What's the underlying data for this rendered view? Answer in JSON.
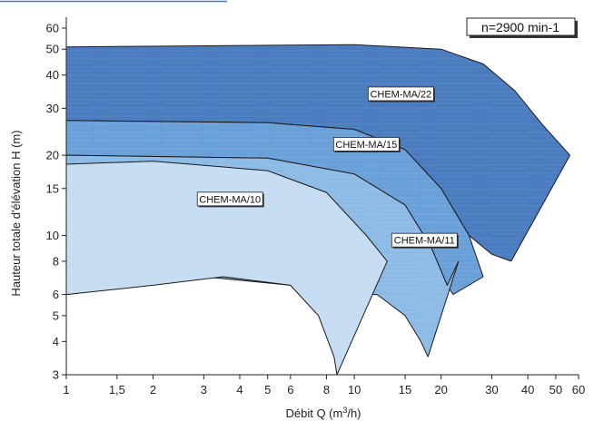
{
  "chart_data": {
    "type": "area",
    "xlabel": "Débit  Q (m",
    "xlabel_sup": "3",
    "xlabel_end": "/h)",
    "ylabel": "Hauteur totale d'élévation  H (m)",
    "x_scale": "log",
    "y_scale": "log",
    "xlim": [
      1,
      60
    ],
    "ylim": [
      3,
      60
    ],
    "x_ticks": [
      1,
      1.5,
      2,
      3,
      4,
      5,
      6,
      8,
      10,
      15,
      20,
      30,
      40,
      50,
      60
    ],
    "x_tick_labels": [
      "1",
      "1,5",
      "2",
      "3",
      "4",
      "5",
      "6",
      "8",
      "10",
      "15",
      "20",
      "30",
      "40",
      "50",
      "60"
    ],
    "y_ticks": [
      3,
      4,
      5,
      6,
      8,
      10,
      15,
      20,
      30,
      40,
      50,
      60
    ],
    "y_tick_labels": [
      "3",
      "4",
      "5",
      "6",
      "8",
      "10",
      "15",
      "20",
      "30",
      "40",
      "50",
      "60"
    ],
    "annotation": "n=2900 min-1",
    "colors": {
      "CHEM-MA/22": "#4a7cbf",
      "CHEM-MA/15": "#6aa0d8",
      "CHEM-MA/11": "#8dbbe6",
      "CHEM-MA/10": "#c6dcf2",
      "outline": "#1a1a1a",
      "axis": "#222222",
      "top_rule": "#4a7cbf"
    },
    "series": [
      {
        "name": "CHEM-MA/22",
        "label_at": [
          14.5,
          34
        ],
        "upper": [
          [
            1,
            51
          ],
          [
            3,
            51.5
          ],
          [
            10,
            52
          ],
          [
            20,
            50
          ],
          [
            28,
            44
          ],
          [
            36,
            35
          ],
          [
            45,
            26
          ],
          [
            56,
            20
          ]
        ],
        "lower": [
          [
            1,
            27
          ],
          [
            5,
            26.5
          ],
          [
            10,
            25
          ],
          [
            15,
            21
          ],
          [
            20,
            15
          ],
          [
            25,
            10
          ],
          [
            30,
            8.5
          ],
          [
            35,
            8
          ]
        ],
        "right": [
          [
            56,
            20
          ],
          [
            35,
            8
          ]
        ]
      },
      {
        "name": "CHEM-MA/15",
        "label_at": [
          11,
          22
        ],
        "upper": [
          [
            1,
            27
          ],
          [
            5,
            26.5
          ],
          [
            10,
            25
          ],
          [
            15,
            21
          ],
          [
            20,
            15
          ],
          [
            25,
            10
          ],
          [
            28,
            7
          ]
        ],
        "lower": [
          [
            1,
            20
          ],
          [
            5,
            19.5
          ],
          [
            10,
            17
          ],
          [
            15,
            13
          ],
          [
            18.5,
            9
          ],
          [
            21,
            6.5
          ],
          [
            22,
            6
          ]
        ],
        "right": [
          [
            28,
            7
          ],
          [
            22,
            6
          ]
        ]
      },
      {
        "name": "CHEM-MA/11",
        "label_at": [
          17.5,
          9.6
        ],
        "upper": [
          [
            1,
            20
          ],
          [
            5,
            19.5
          ],
          [
            10,
            17
          ],
          [
            15,
            13
          ],
          [
            18.5,
            9
          ],
          [
            21,
            6.5
          ],
          [
            23,
            8
          ]
        ],
        "lower": [
          [
            1,
            6
          ],
          [
            3,
            7
          ],
          [
            6,
            6.5
          ],
          [
            8,
            6
          ],
          [
            12,
            6
          ],
          [
            15,
            5
          ],
          [
            17,
            4
          ],
          [
            18,
            3.5
          ]
        ],
        "right": [
          [
            23,
            8
          ],
          [
            18,
            3.5
          ]
        ]
      },
      {
        "name": "CHEM-MA/10",
        "label_at": [
          3.7,
          13.7
        ],
        "upper": [
          [
            1,
            18.5
          ],
          [
            2,
            19
          ],
          [
            5,
            17.5
          ],
          [
            8,
            14.5
          ],
          [
            11,
            10
          ],
          [
            13,
            8
          ]
        ],
        "lower": [
          [
            1,
            6
          ],
          [
            2,
            6.5
          ],
          [
            3.5,
            7
          ],
          [
            6,
            6.5
          ],
          [
            7.5,
            5
          ],
          [
            8.5,
            3.5
          ],
          [
            8.7,
            3
          ]
        ],
        "right": [
          [
            13,
            8
          ],
          [
            8.7,
            3
          ]
        ]
      }
    ]
  }
}
